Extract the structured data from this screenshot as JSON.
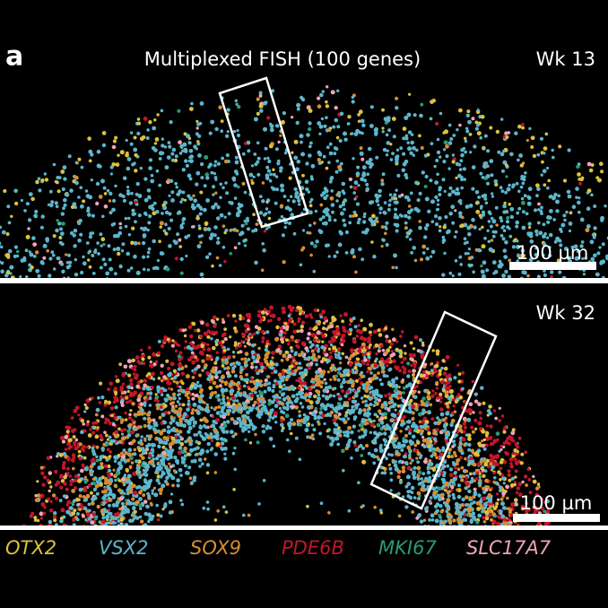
{
  "panel_label": "a",
  "title": "Multiplexed FISH (100 genes)",
  "panels": [
    {
      "label": "Wk 13",
      "scale_bar": "100 µm"
    },
    {
      "label": "Wk 32",
      "scale_bar": "100 µm"
    }
  ],
  "legend": [
    {
      "name": "OTX2",
      "color": "#dcc23c"
    },
    {
      "name": "VSX2",
      "color": "#5cb6cc"
    },
    {
      "name": "SOX9",
      "color": "#d68e32"
    },
    {
      "name": "PDE6B",
      "color": "#c3162c"
    },
    {
      "name": "MKI67",
      "color": "#2a9a78"
    },
    {
      "name": "SLC17A7",
      "color": "#f2a4b4"
    }
  ]
}
